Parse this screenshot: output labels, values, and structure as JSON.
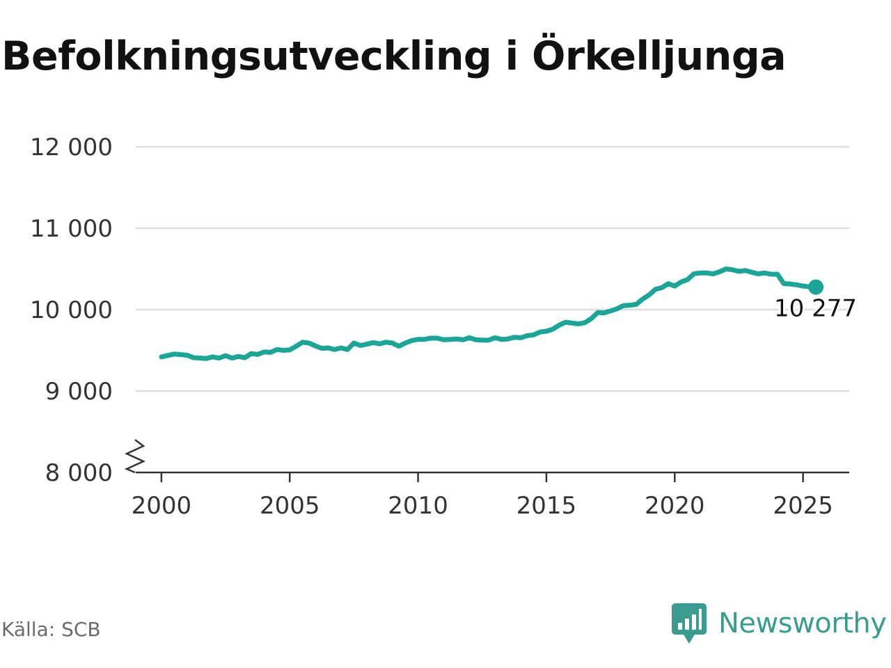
{
  "title": "Befolkningsutveckling i Örkelljunga",
  "source": "Källa: SCB",
  "brand": {
    "name": "Newsworthy",
    "logo_icon": "newsworthy-bar-chart-icon"
  },
  "colors": {
    "line": "#1aa597",
    "grid": "#dddddd",
    "axis": "#333333",
    "brand": "#3a9c8e"
  },
  "chart_data": {
    "type": "line",
    "title": "Befolkningsutveckling i Örkelljunga",
    "xlabel": "",
    "ylabel": "",
    "xlim": [
      1999.0,
      2026.8
    ],
    "ylim": [
      8000,
      12000
    ],
    "y_axis_break": true,
    "grid": "horizontal",
    "x_ticks": [
      {
        "value": 2000,
        "label": "2000"
      },
      {
        "value": 2005,
        "label": "2005"
      },
      {
        "value": 2010,
        "label": "2010"
      },
      {
        "value": 2015,
        "label": "2015"
      },
      {
        "value": 2020,
        "label": "2020"
      },
      {
        "value": 2025,
        "label": "2025"
      }
    ],
    "y_ticks": [
      {
        "value": 8000,
        "label": "8 000"
      },
      {
        "value": 9000,
        "label": "9 000"
      },
      {
        "value": 10000,
        "label": "10 000"
      },
      {
        "value": 11000,
        "label": "11 000"
      },
      {
        "value": 12000,
        "label": "12 000"
      }
    ],
    "series": [
      {
        "x": [
          2000.0,
          2000.5,
          2001.0,
          2001.25,
          2001.75,
          2002.0,
          2002.25,
          2002.5,
          2002.75,
          2003.0,
          2003.25,
          2003.5,
          2003.75,
          2004.0,
          2004.25,
          2004.5,
          2004.75,
          2005.0,
          2005.25,
          2005.5,
          2005.75,
          2006.0,
          2006.25,
          2006.5,
          2006.75,
          2007.0,
          2007.25,
          2007.5,
          2007.75,
          2008.0,
          2008.25,
          2008.5,
          2008.75,
          2009.0,
          2009.25,
          2009.5,
          2009.75,
          2010.0,
          2010.25,
          2010.5,
          2010.75,
          2011.0,
          2011.25,
          2011.5,
          2011.75,
          2012.0,
          2012.25,
          2012.5,
          2012.75,
          2013.0,
          2013.25,
          2013.5,
          2013.75,
          2014.0,
          2014.25,
          2014.5,
          2014.75,
          2015.0,
          2015.25,
          2015.5,
          2015.75,
          2016.0,
          2016.25,
          2016.5,
          2016.75,
          2017.0,
          2017.25,
          2017.5,
          2017.75,
          2018.0,
          2018.25,
          2018.5,
          2018.75,
          2019.0,
          2019.25,
          2019.5,
          2019.75,
          2020.0,
          2020.25,
          2020.5,
          2020.75,
          2021.0,
          2021.25,
          2021.5,
          2021.75,
          2022.0,
          2022.25,
          2022.5,
          2022.75,
          2023.0,
          2023.25,
          2023.5,
          2023.75,
          2024.0,
          2024.25,
          2024.5,
          2024.75,
          2025.0,
          2025.25,
          2025.5
        ],
        "values": [
          9420,
          9455,
          9440,
          9410,
          9400,
          9420,
          9405,
          9435,
          9405,
          9425,
          9410,
          9460,
          9450,
          9480,
          9475,
          9510,
          9500,
          9505,
          9550,
          9600,
          9590,
          9555,
          9525,
          9530,
          9510,
          9530,
          9510,
          9590,
          9560,
          9575,
          9595,
          9580,
          9600,
          9590,
          9550,
          9590,
          9620,
          9635,
          9635,
          9650,
          9650,
          9630,
          9635,
          9640,
          9630,
          9655,
          9630,
          9625,
          9625,
          9655,
          9635,
          9640,
          9660,
          9655,
          9680,
          9690,
          9725,
          9735,
          9760,
          9810,
          9845,
          9835,
          9825,
          9840,
          9890,
          9965,
          9960,
          9985,
          10010,
          10050,
          10055,
          10065,
          10130,
          10180,
          10250,
          10270,
          10320,
          10290,
          10340,
          10370,
          10440,
          10450,
          10450,
          10440,
          10465,
          10500,
          10490,
          10470,
          10480,
          10460,
          10440,
          10450,
          10435,
          10435,
          10320,
          10315,
          10305,
          10290,
          10280,
          10277
        ]
      }
    ],
    "annotation": {
      "x": 2025.5,
      "value": 10277,
      "label": "10 277"
    }
  }
}
